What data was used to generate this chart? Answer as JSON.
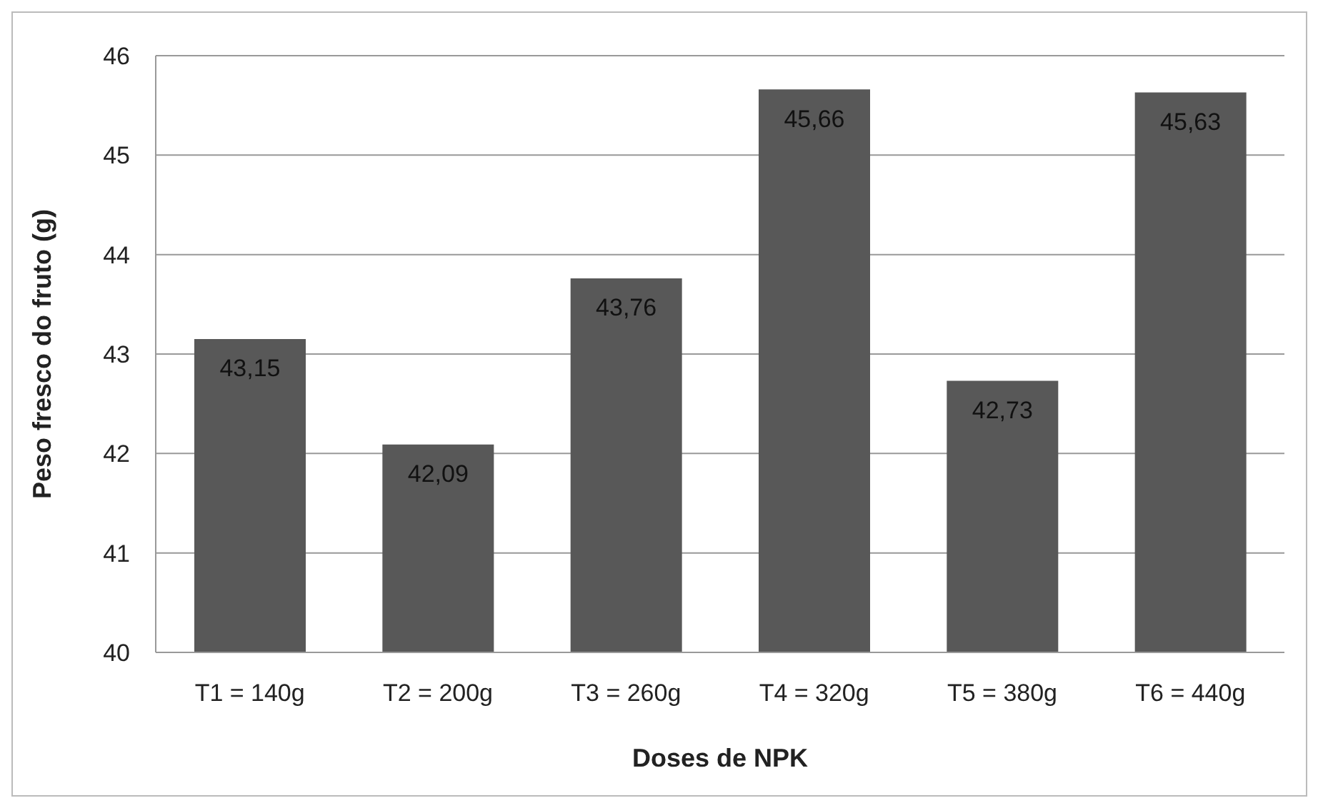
{
  "chart_data": {
    "type": "bar",
    "xlabel": "Doses de NPK",
    "ylabel": "Peso fresco do fruto (g)",
    "categories": [
      "T1 = 140g",
      "T2 = 200g",
      "T3 = 260g",
      "T4 = 320g",
      "T5 = 380g",
      "T6 = 440g"
    ],
    "values": [
      43.15,
      42.09,
      43.76,
      45.66,
      42.73,
      45.63
    ],
    "value_labels": [
      "43,15",
      "42,09",
      "43,76",
      "45,66",
      "42,73",
      "45,63"
    ],
    "color": "#585858",
    "ylim": [
      40,
      46
    ],
    "yticks": [
      40,
      41,
      42,
      43,
      44,
      45,
      46
    ],
    "grid": "y"
  }
}
